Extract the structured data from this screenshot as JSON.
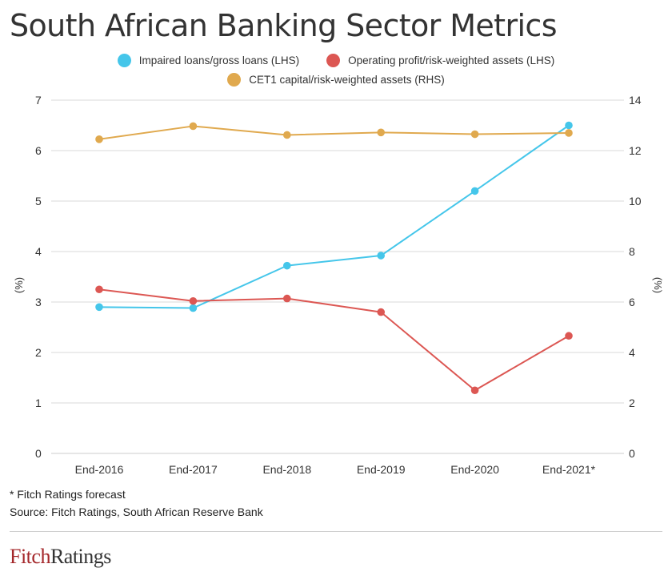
{
  "title": "South African Banking Sector Metrics",
  "legend": [
    {
      "label": "Impaired loans/gross loans (LHS)",
      "color": "#45c6ea"
    },
    {
      "label": "Operating profit/risk-weighted assets (LHS)",
      "color": "#dc5753"
    },
    {
      "label": "CET1 capital/risk-weighted assets (RHS)",
      "color": "#e0a94e"
    }
  ],
  "footnote": "* Fitch Ratings forecast",
  "source": "Source: Fitch Ratings, South African Reserve Bank",
  "logo": {
    "part1": "Fitch",
    "part2": "Ratings"
  },
  "chart_data": {
    "type": "line",
    "categories": [
      "End-2016",
      "End-2017",
      "End-2018",
      "End-2019",
      "End-2020",
      "End-2021*"
    ],
    "y_left": {
      "label": "(%)",
      "range": [
        0,
        7
      ],
      "ticks": [
        "0",
        "1",
        "2",
        "3",
        "4",
        "5",
        "6",
        "7"
      ]
    },
    "y_right": {
      "label": "(%)",
      "range": [
        0,
        14
      ],
      "ticks": [
        "0",
        "2",
        "4",
        "6",
        "8",
        "10",
        "12",
        "14"
      ]
    },
    "grid": true,
    "legend_position": "top",
    "series": [
      {
        "name": "Impaired loans/gross loans (LHS)",
        "axis": "left",
        "color": "#45c6ea",
        "values": [
          2.9,
          2.88,
          3.72,
          3.92,
          5.2,
          6.5
        ]
      },
      {
        "name": "Operating profit/risk-weighted assets (LHS)",
        "axis": "left",
        "color": "#dc5753",
        "values": [
          3.25,
          3.02,
          3.07,
          2.8,
          1.25,
          2.33
        ]
      },
      {
        "name": "CET1 capital/risk-weighted assets (RHS)",
        "axis": "right",
        "color": "#e0a94e",
        "values": [
          12.45,
          12.97,
          12.62,
          12.72,
          12.65,
          12.7
        ]
      }
    ]
  }
}
